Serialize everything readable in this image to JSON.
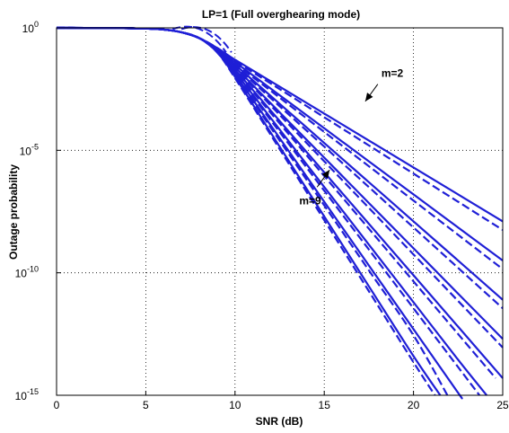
{
  "chart_data": {
    "type": "line",
    "title": "LP=1 (Full overghearing mode)",
    "xlabel": "SNR (dB)",
    "ylabel": "Outage probability",
    "xlim": [
      0,
      25
    ],
    "ylim_log10": [
      -15,
      0
    ],
    "y_scale": "log",
    "grid": true,
    "grid_style": "dotted",
    "x_ticks": [
      "0",
      "5",
      "10",
      "15",
      "20",
      "25"
    ],
    "x_tick_values": [
      0,
      5,
      10,
      15,
      20,
      25
    ],
    "y_ticks": [
      {
        "base": "10",
        "exp": "0",
        "value": 0
      },
      {
        "base": "10",
        "exp": "-5",
        "value": -5
      },
      {
        "base": "10",
        "exp": "-10",
        "value": -10
      },
      {
        "base": "10",
        "exp": "-15",
        "value": -15
      }
    ],
    "line_color": "#1f1fd6",
    "series": [
      {
        "style": "solid",
        "values_log10": [
          [
            0,
            0
          ],
          [
            3,
            -0.008
          ],
          [
            5,
            -0.03
          ],
          [
            6,
            -0.07
          ],
          [
            7,
            -0.18
          ],
          [
            8,
            -0.42
          ],
          [
            9,
            -0.82
          ],
          [
            10,
            -1.3
          ],
          [
            12.5,
            -2.4
          ],
          [
            15,
            -3.5
          ],
          [
            17.5,
            -4.6
          ],
          [
            20,
            -5.7
          ],
          [
            22.5,
            -6.8
          ],
          [
            25,
            -7.9
          ]
        ]
      },
      {
        "style": "dashed",
        "values_log10": [
          [
            0,
            0
          ],
          [
            3,
            -0.008
          ],
          [
            5,
            -0.03
          ],
          [
            6,
            -0.07
          ],
          [
            7,
            -0.18
          ],
          [
            8,
            -0.42
          ],
          [
            9,
            -0.82
          ],
          [
            10,
            -1.35
          ],
          [
            12.5,
            -2.5
          ],
          [
            15,
            -3.65
          ],
          [
            17.5,
            -4.8
          ],
          [
            20,
            -5.95
          ],
          [
            22.5,
            -7.1
          ],
          [
            25,
            -8.25
          ]
        ]
      },
      {
        "style": "solid",
        "values_log10": [
          [
            0,
            0
          ],
          [
            3,
            -0.008
          ],
          [
            5,
            -0.03
          ],
          [
            6,
            -0.07
          ],
          [
            7,
            -0.18
          ],
          [
            8,
            -0.42
          ],
          [
            9,
            -0.85
          ],
          [
            10,
            -1.4
          ],
          [
            12.5,
            -2.75
          ],
          [
            15,
            -4.1
          ],
          [
            17.5,
            -5.45
          ],
          [
            20,
            -6.8
          ],
          [
            22.5,
            -8.15
          ],
          [
            25,
            -9.5
          ]
        ]
      },
      {
        "style": "dashed",
        "values_log10": [
          [
            0,
            0
          ],
          [
            3,
            -0.008
          ],
          [
            5,
            -0.03
          ],
          [
            6,
            -0.07
          ],
          [
            7,
            -0.18
          ],
          [
            8,
            -0.42
          ],
          [
            9,
            -0.85
          ],
          [
            10,
            -1.45
          ],
          [
            12.5,
            -2.85
          ],
          [
            15,
            -4.25
          ],
          [
            17.5,
            -5.65
          ],
          [
            20,
            -7.05
          ],
          [
            22.5,
            -8.45
          ],
          [
            25,
            -9.85
          ]
        ]
      },
      {
        "style": "solid",
        "values_log10": [
          [
            0,
            0
          ],
          [
            3,
            -0.008
          ],
          [
            5,
            -0.03
          ],
          [
            6,
            -0.07
          ],
          [
            7,
            -0.18
          ],
          [
            8,
            -0.42
          ],
          [
            9,
            -0.88
          ],
          [
            10,
            -1.5
          ],
          [
            12.5,
            -3.1
          ],
          [
            15,
            -4.7
          ],
          [
            17.5,
            -6.3
          ],
          [
            20,
            -7.9
          ],
          [
            22.5,
            -9.5
          ],
          [
            25,
            -11.1
          ]
        ]
      },
      {
        "style": "dashed",
        "values_log10": [
          [
            0,
            0
          ],
          [
            3,
            -0.008
          ],
          [
            5,
            -0.03
          ],
          [
            6,
            -0.07
          ],
          [
            7,
            -0.18
          ],
          [
            8,
            -0.42
          ],
          [
            9,
            -0.88
          ],
          [
            10,
            -1.55
          ],
          [
            12.5,
            -3.2
          ],
          [
            15,
            -4.85
          ],
          [
            17.5,
            -6.5
          ],
          [
            20,
            -8.15
          ],
          [
            22.5,
            -9.8
          ],
          [
            25,
            -11.45
          ]
        ]
      },
      {
        "style": "solid",
        "values_log10": [
          [
            0,
            0
          ],
          [
            3,
            -0.008
          ],
          [
            5,
            -0.03
          ],
          [
            6,
            -0.07
          ],
          [
            7,
            -0.18
          ],
          [
            8,
            -0.42
          ],
          [
            9,
            -0.9
          ],
          [
            10,
            -1.6
          ],
          [
            12.5,
            -3.45
          ],
          [
            15,
            -5.3
          ],
          [
            17.5,
            -7.15
          ],
          [
            20,
            -9.0
          ],
          [
            22.5,
            -10.85
          ],
          [
            25,
            -12.7
          ]
        ]
      },
      {
        "style": "dashed",
        "values_log10": [
          [
            0,
            0
          ],
          [
            3,
            -0.008
          ],
          [
            5,
            -0.03
          ],
          [
            6,
            -0.07
          ],
          [
            7,
            -0.18
          ],
          [
            8,
            -0.42
          ],
          [
            9,
            -0.9
          ],
          [
            10,
            -1.65
          ],
          [
            12.5,
            -3.55
          ],
          [
            15,
            -5.45
          ],
          [
            17.5,
            -7.35
          ],
          [
            20,
            -9.25
          ],
          [
            22.5,
            -11.15
          ],
          [
            25,
            -13.05
          ]
        ]
      },
      {
        "style": "solid",
        "values_log10": [
          [
            0,
            0
          ],
          [
            3,
            -0.008
          ],
          [
            5,
            -0.03
          ],
          [
            6,
            -0.07
          ],
          [
            7,
            -0.18
          ],
          [
            8,
            -0.42
          ],
          [
            9,
            -0.92
          ],
          [
            10,
            -1.7
          ],
          [
            12.5,
            -3.8
          ],
          [
            15,
            -5.9
          ],
          [
            17.5,
            -8.0
          ],
          [
            20,
            -10.1
          ],
          [
            22.5,
            -12.2
          ],
          [
            25,
            -14.3
          ]
        ]
      },
      {
        "style": "dashed",
        "values_log10": [
          [
            0,
            0
          ],
          [
            3,
            -0.008
          ],
          [
            5,
            -0.03
          ],
          [
            6,
            -0.07
          ],
          [
            7,
            -0.18
          ],
          [
            8,
            -0.42
          ],
          [
            9,
            -0.92
          ],
          [
            10,
            -1.75
          ],
          [
            12.5,
            -3.9
          ],
          [
            15,
            -6.05
          ],
          [
            17.5,
            -8.2
          ],
          [
            20,
            -10.35
          ],
          [
            22.5,
            -12.5
          ],
          [
            24.6,
            -14.3
          ]
        ]
      },
      {
        "style": "solid",
        "values_log10": [
          [
            0,
            0
          ],
          [
            3,
            -0.008
          ],
          [
            5,
            -0.03
          ],
          [
            6,
            -0.07
          ],
          [
            7,
            -0.18
          ],
          [
            8,
            -0.42
          ],
          [
            9,
            -0.95
          ],
          [
            10,
            -1.8
          ],
          [
            12.5,
            -4.15
          ],
          [
            15,
            -6.5
          ],
          [
            17.5,
            -8.85
          ],
          [
            20,
            -11.2
          ],
          [
            22.5,
            -13.55
          ],
          [
            24.1,
            -15.0
          ]
        ]
      },
      {
        "style": "dashed",
        "values_log10": [
          [
            0,
            0
          ],
          [
            3,
            -0.008
          ],
          [
            5,
            -0.03
          ],
          [
            6,
            -0.07
          ],
          [
            7,
            -0.18
          ],
          [
            8,
            -0.42
          ],
          [
            9,
            -0.95
          ],
          [
            10,
            -1.85
          ],
          [
            12.5,
            -4.25
          ],
          [
            15,
            -6.65
          ],
          [
            17.5,
            -9.05
          ],
          [
            20,
            -11.45
          ],
          [
            22.5,
            -13.85
          ],
          [
            23.7,
            -15.0
          ]
        ]
      },
      {
        "style": "solid",
        "values_log10": [
          [
            0,
            0
          ],
          [
            3,
            -0.008
          ],
          [
            5,
            -0.03
          ],
          [
            6,
            -0.07
          ],
          [
            7,
            -0.18
          ],
          [
            8,
            -0.42
          ],
          [
            9,
            -0.98
          ],
          [
            10,
            -1.9
          ],
          [
            12.5,
            -4.5
          ],
          [
            15,
            -7.1
          ],
          [
            17.5,
            -9.7
          ],
          [
            20,
            -12.3
          ],
          [
            22.5,
            -14.9
          ],
          [
            22.6,
            -15.0
          ]
        ]
      },
      {
        "style": "dashed",
        "values_log10": [
          [
            0,
            0
          ],
          [
            3,
            -0.008
          ],
          [
            5,
            -0.03
          ],
          [
            6,
            -0.07
          ],
          [
            7,
            -0.18
          ],
          [
            8,
            -0.42
          ],
          [
            9,
            -0.98
          ],
          [
            10,
            -1.95
          ],
          [
            12.5,
            -4.6
          ],
          [
            15,
            -7.25
          ],
          [
            17.5,
            -9.9
          ],
          [
            20,
            -12.55
          ],
          [
            21.9,
            -15.0
          ]
        ]
      },
      {
        "style": "solid",
        "values_log10": [
          [
            0,
            0
          ],
          [
            3,
            -0.008
          ],
          [
            5,
            -0.03
          ],
          [
            6,
            -0.07
          ],
          [
            7,
            -0.18
          ],
          [
            8,
            -0.42
          ],
          [
            9,
            -1.0
          ],
          [
            10,
            -2.0
          ],
          [
            12.5,
            -4.85
          ],
          [
            15,
            -7.7
          ],
          [
            17.5,
            -10.55
          ],
          [
            20,
            -13.4
          ],
          [
            21.5,
            -15.0
          ]
        ]
      },
      {
        "style": "dashed",
        "values_log10": [
          [
            0,
            0
          ],
          [
            3,
            -0.008
          ],
          [
            5,
            -0.03
          ],
          [
            6,
            -0.07
          ],
          [
            7,
            -0.18
          ],
          [
            8,
            -0.42
          ],
          [
            9,
            -1.0
          ],
          [
            10,
            -2.05
          ],
          [
            12.5,
            -4.95
          ],
          [
            15,
            -7.85
          ],
          [
            17.5,
            -10.75
          ],
          [
            20,
            -13.65
          ],
          [
            21.2,
            -15.0
          ]
        ]
      }
    ],
    "dashed_early_bumps": [
      {
        "x0": 6.5,
        "x1": 9.5,
        "peak_x": 8.2,
        "drop": 0.15
      },
      {
        "x0": 7.0,
        "x1": 9.8,
        "peak_x": 8.6,
        "drop": 0.1
      }
    ],
    "annotations": [
      {
        "text": "m=2",
        "label_x": 18.2,
        "label_log10": -2.0,
        "arrow_from": [
          18.0,
          -2.3
        ],
        "arrow_to": [
          17.3,
          -3.0
        ]
      },
      {
        "text": "m=9",
        "label_x": 13.6,
        "label_log10": -7.2,
        "arrow_from": [
          14.6,
          -6.5
        ],
        "arrow_to": [
          15.3,
          -5.8
        ]
      }
    ]
  }
}
